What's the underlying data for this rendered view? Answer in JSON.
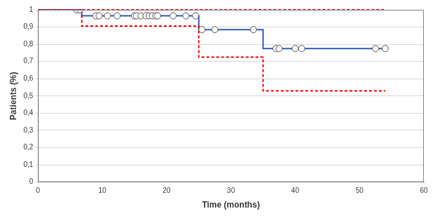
{
  "chart_data": {
    "type": "step",
    "x_label": "Time (months)",
    "y_label": "Patients (%)",
    "xlim": [
      0,
      60
    ],
    "xticks": [
      0,
      10,
      20,
      30,
      40,
      50,
      60
    ],
    "ylim": [
      0,
      1
    ],
    "yticks": [
      0,
      {
        "value": 0.1,
        "label": "0,1"
      },
      {
        "value": 0.2,
        "label": "0,2"
      },
      {
        "value": 0.3,
        "label": "0,3"
      },
      {
        "value": 0.4,
        "label": "0,4"
      },
      {
        "value": 0.5,
        "label": "0,5"
      },
      {
        "value": 0.6,
        "label": "0,6"
      },
      {
        "value": 0.7,
        "label": "0,7"
      },
      {
        "value": 0.8,
        "label": "0,8"
      },
      {
        "value": 0.9,
        "label": "0,9"
      },
      1
    ],
    "grid": "y",
    "series": [
      {
        "color": "#ff0000",
        "line_style": "dashed",
        "marker": "none",
        "type": "line",
        "x": [
          0,
          54
        ],
        "values": [
          1,
          1
        ]
      },
      {
        "color": "#ff0000",
        "line_style": "dashed",
        "marker": "none",
        "type": "line",
        "x": [
          0,
          6.8,
          25,
          35,
          54
        ],
        "values": [
          1,
          0.905,
          0.725,
          0.53,
          0.53
        ]
      },
      {
        "color": "#2e5fbf",
        "line_style": "solid",
        "marker": "none",
        "type": "line",
        "x": [
          0,
          6.8,
          25,
          35,
          54
        ],
        "values": [
          1,
          0.965,
          0.885,
          0.775,
          0.775
        ]
      },
      {
        "color": "#595959",
        "marker": "circle",
        "type": "scatter",
        "x": [
          6,
          6.5,
          9,
          9.5,
          10.8,
          12.3,
          15,
          15.3,
          16,
          16.8,
          17.3,
          17.8,
          18.3,
          18.6,
          21,
          23,
          24.5,
          25.5,
          27.5,
          33.5,
          37,
          37.5,
          40,
          41,
          52.5,
          54
        ],
        "values": [
          1,
          1,
          0.965,
          0.965,
          0.965,
          0.965,
          0.965,
          0.965,
          0.965,
          0.965,
          0.965,
          0.965,
          0.965,
          0.965,
          0.965,
          0.965,
          0.965,
          0.885,
          0.885,
          0.885,
          0.775,
          0.775,
          0.775,
          0.775,
          0.775,
          0.775
        ]
      }
    ]
  }
}
